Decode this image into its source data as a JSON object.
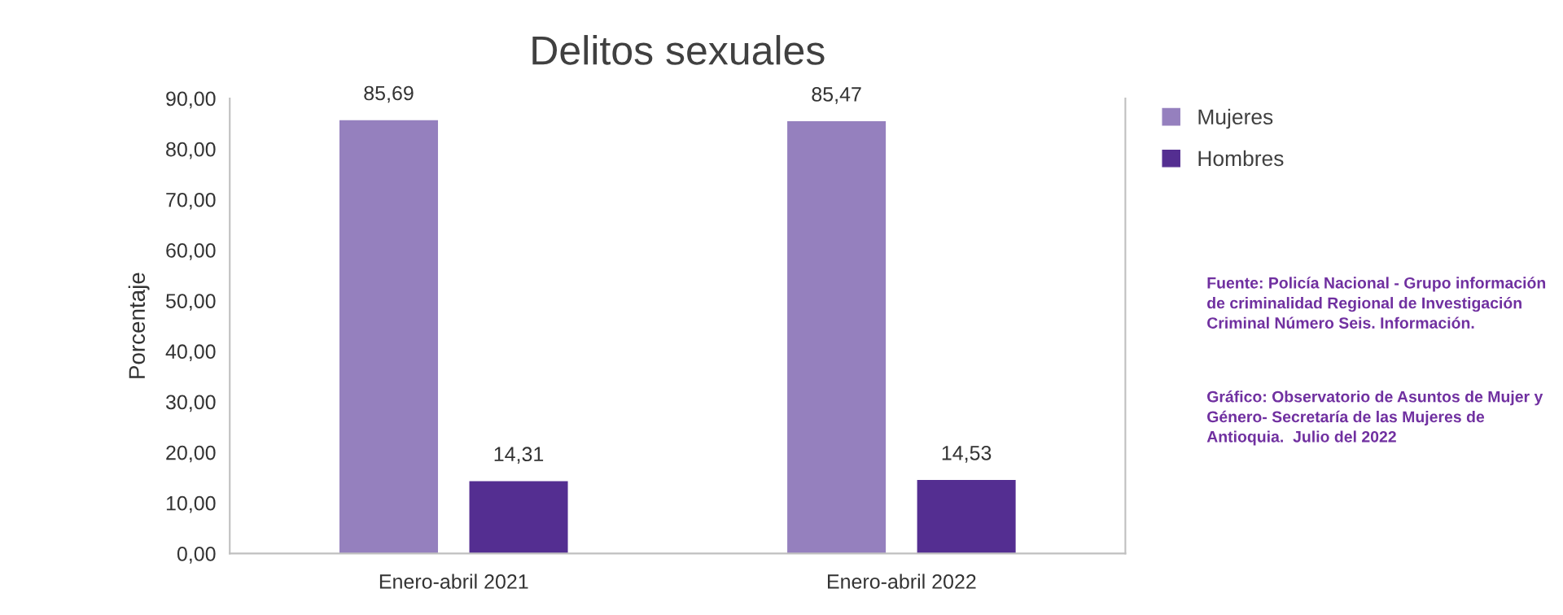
{
  "chart_data": {
    "type": "bar",
    "title": "Delitos sexuales",
    "ylabel": "Porcentaje",
    "categories": [
      "Enero-abril 2021",
      "Enero-abril 2022"
    ],
    "series": [
      {
        "name": "Mujeres",
        "color": "#9580be",
        "values": [
          85.69,
          85.47
        ],
        "value_labels": [
          "85,69",
          "85,47"
        ]
      },
      {
        "name": "Hombres",
        "color": "#542e91",
        "values": [
          14.31,
          14.53
        ],
        "value_labels": [
          "14,31",
          "14,53"
        ]
      }
    ],
    "ylim": [
      0,
      90
    ],
    "yticks": [
      {
        "value": 0,
        "label": "0,00"
      },
      {
        "value": 10,
        "label": "10,00"
      },
      {
        "value": 20,
        "label": "20,00"
      },
      {
        "value": 30,
        "label": "30,00"
      },
      {
        "value": 40,
        "label": "40,00"
      },
      {
        "value": 50,
        "label": "50,00"
      },
      {
        "value": 60,
        "label": "60,00"
      },
      {
        "value": 70,
        "label": "70,00"
      },
      {
        "value": 80,
        "label": "80,00"
      },
      {
        "value": 90,
        "label": "90,00"
      }
    ],
    "grid": false,
    "legend": "top right",
    "annotations": [
      "Fuente: Policía Nacional - Grupo información de criminalidad Regional de Investigación Criminal Número Seis. Información.",
      "Gráfico: Observatorio de Asuntos de Mujer y Género- Secretaría de las Mujeres de Antioquia.  Julio del 2022"
    ]
  }
}
